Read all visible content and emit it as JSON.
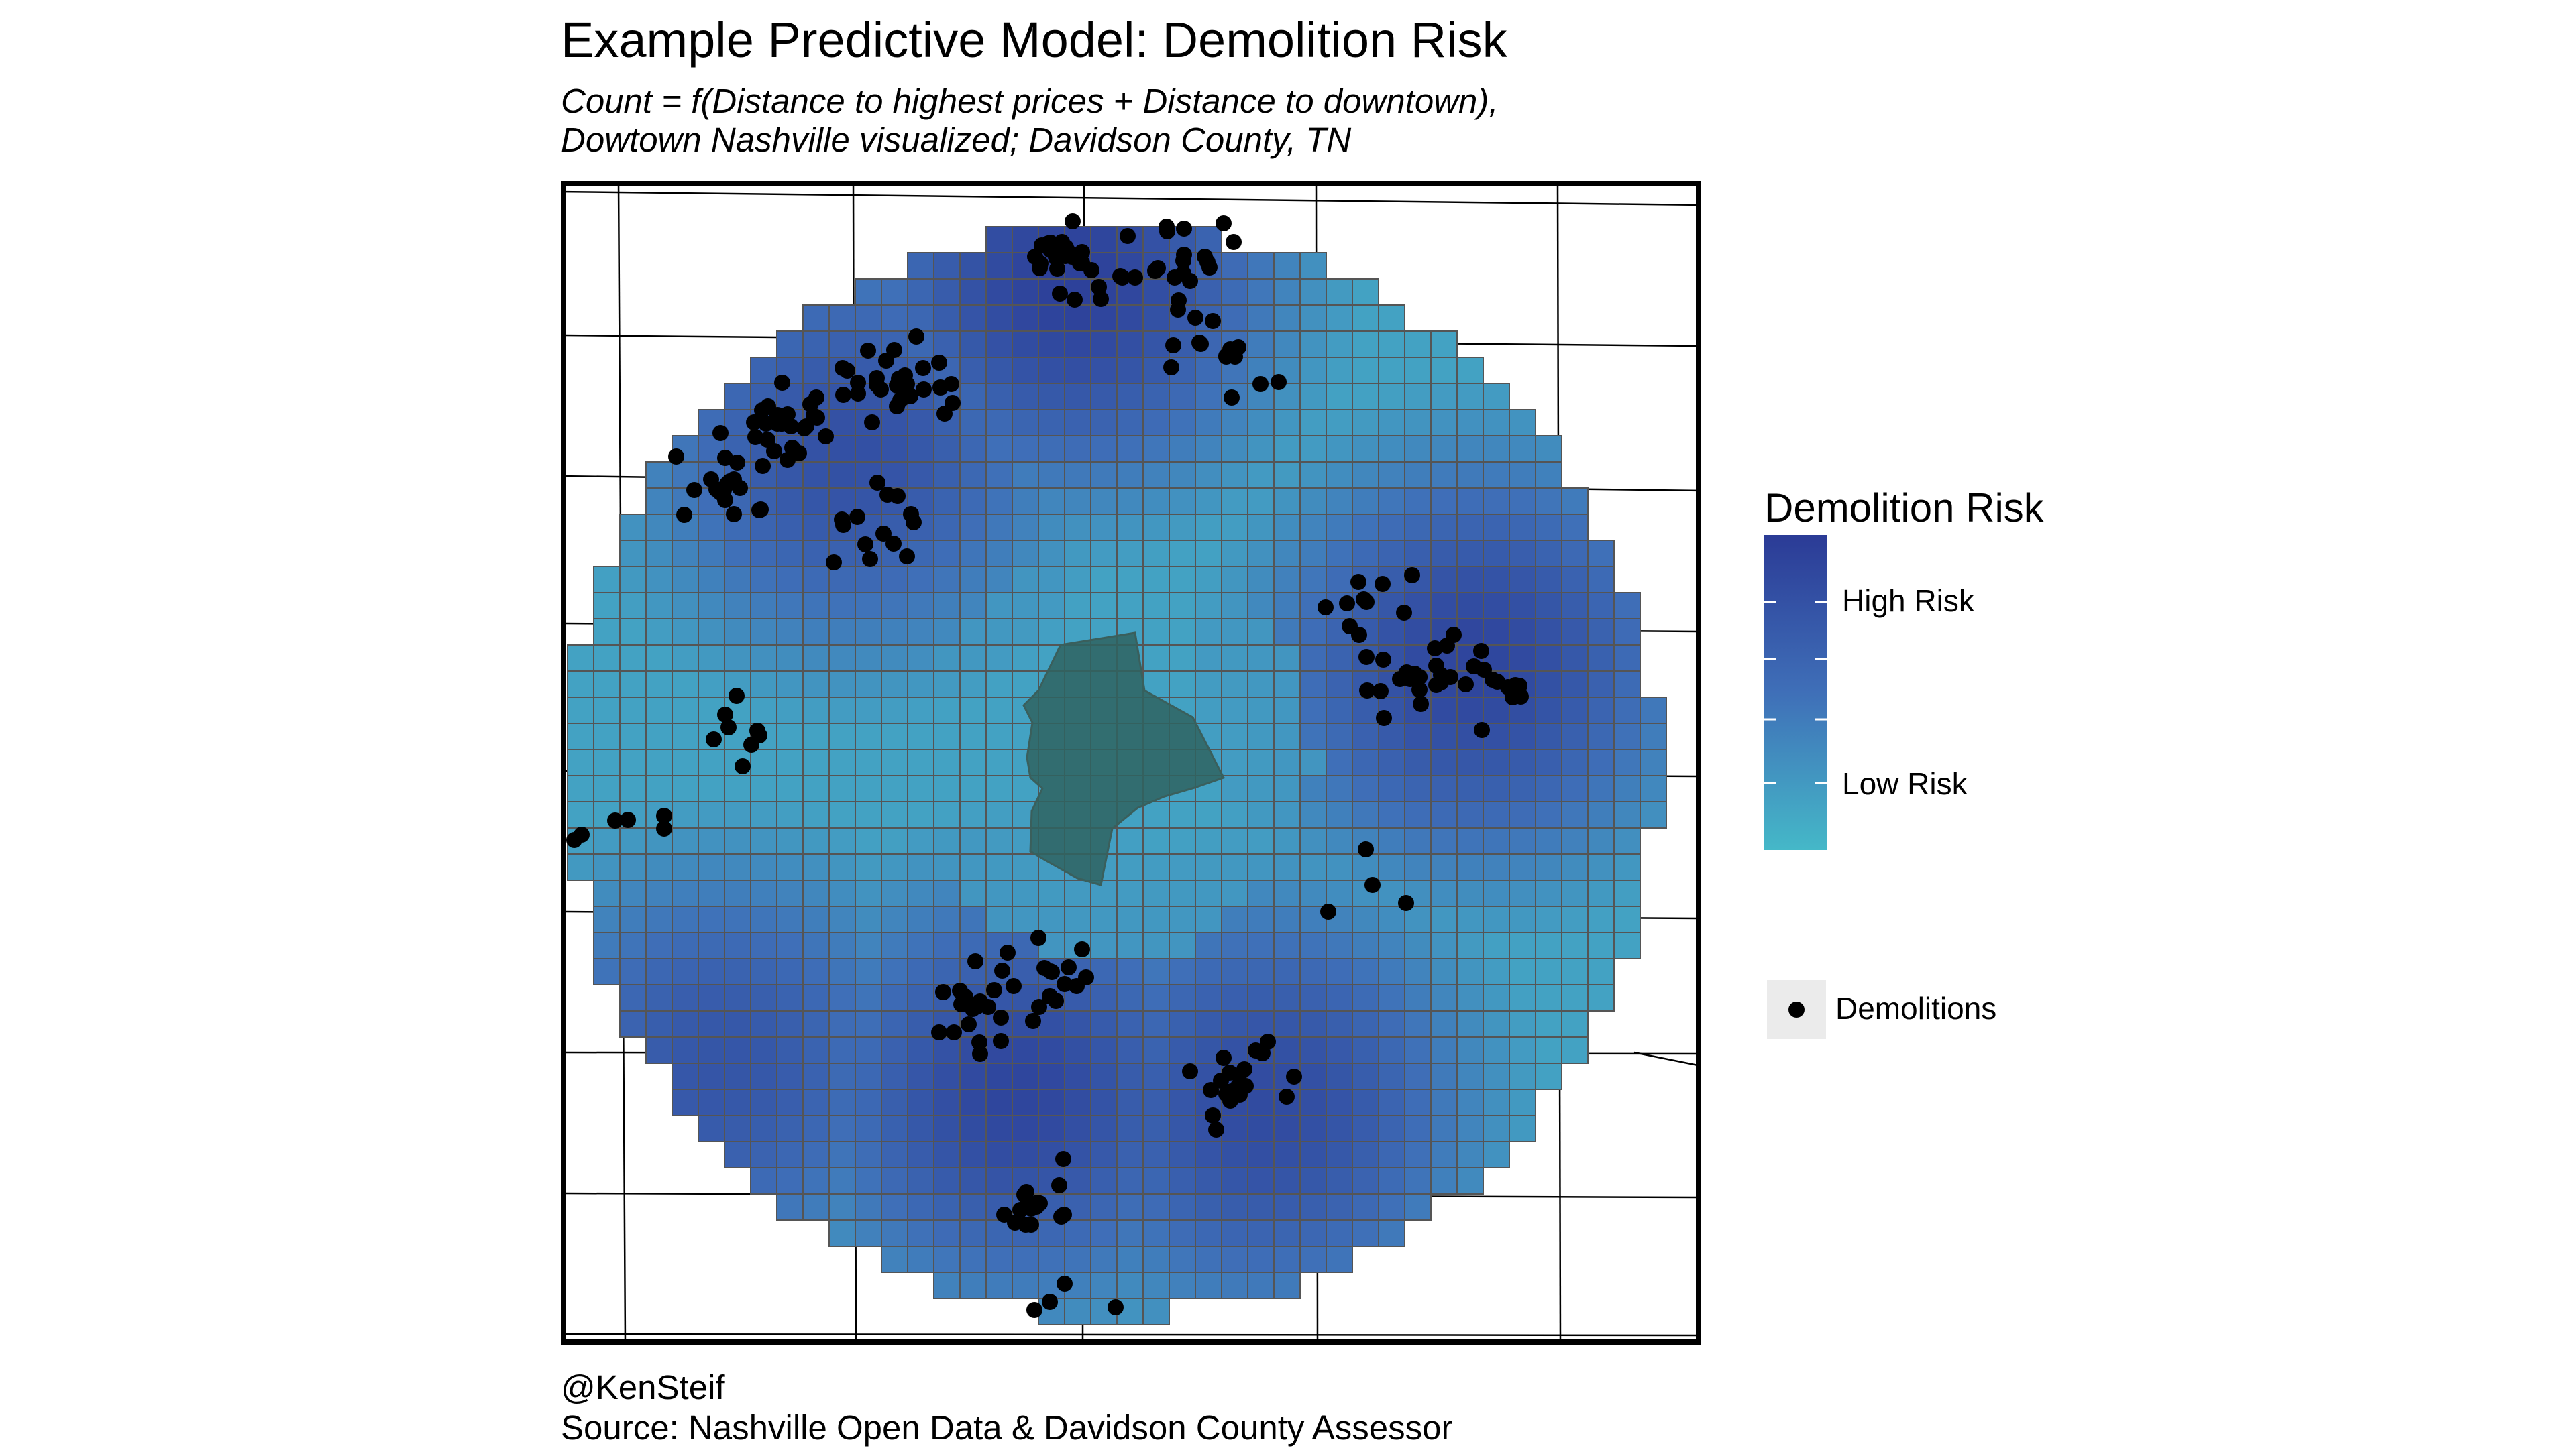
{
  "title": "Example Predictive Model: Demolition Risk",
  "subtitle": [
    "Count = f(Distance to highest prices + Distance to downtown),",
    "Dowtown Nashville visualized; Davidson County, TN"
  ],
  "legend": {
    "title": "Demolition Risk",
    "high_label": "High Risk",
    "low_label": "Low Risk",
    "points_label": "Demolitions",
    "colors": {
      "high": "#2b3b96",
      "mid": "#3f6fb8",
      "low": "#45b8c8"
    }
  },
  "caption": [
    "@KenSteif",
    "Source: Nashville Open Data & Davidson County Assessor"
  ],
  "map": {
    "fishnet_outline_color": "#555555",
    "downtown_fill": "#2f6462",
    "point_color": "#000000",
    "risk_hotspots": [
      {
        "area": "north",
        "risk": 0.95
      },
      {
        "area": "north-west",
        "risk": 0.8
      },
      {
        "area": "east",
        "risk": 0.9
      },
      {
        "area": "south",
        "risk": 0.9
      },
      {
        "area": "south-east",
        "risk": 0.85
      },
      {
        "area": "south-west",
        "risk": 0.75
      }
    ]
  }
}
